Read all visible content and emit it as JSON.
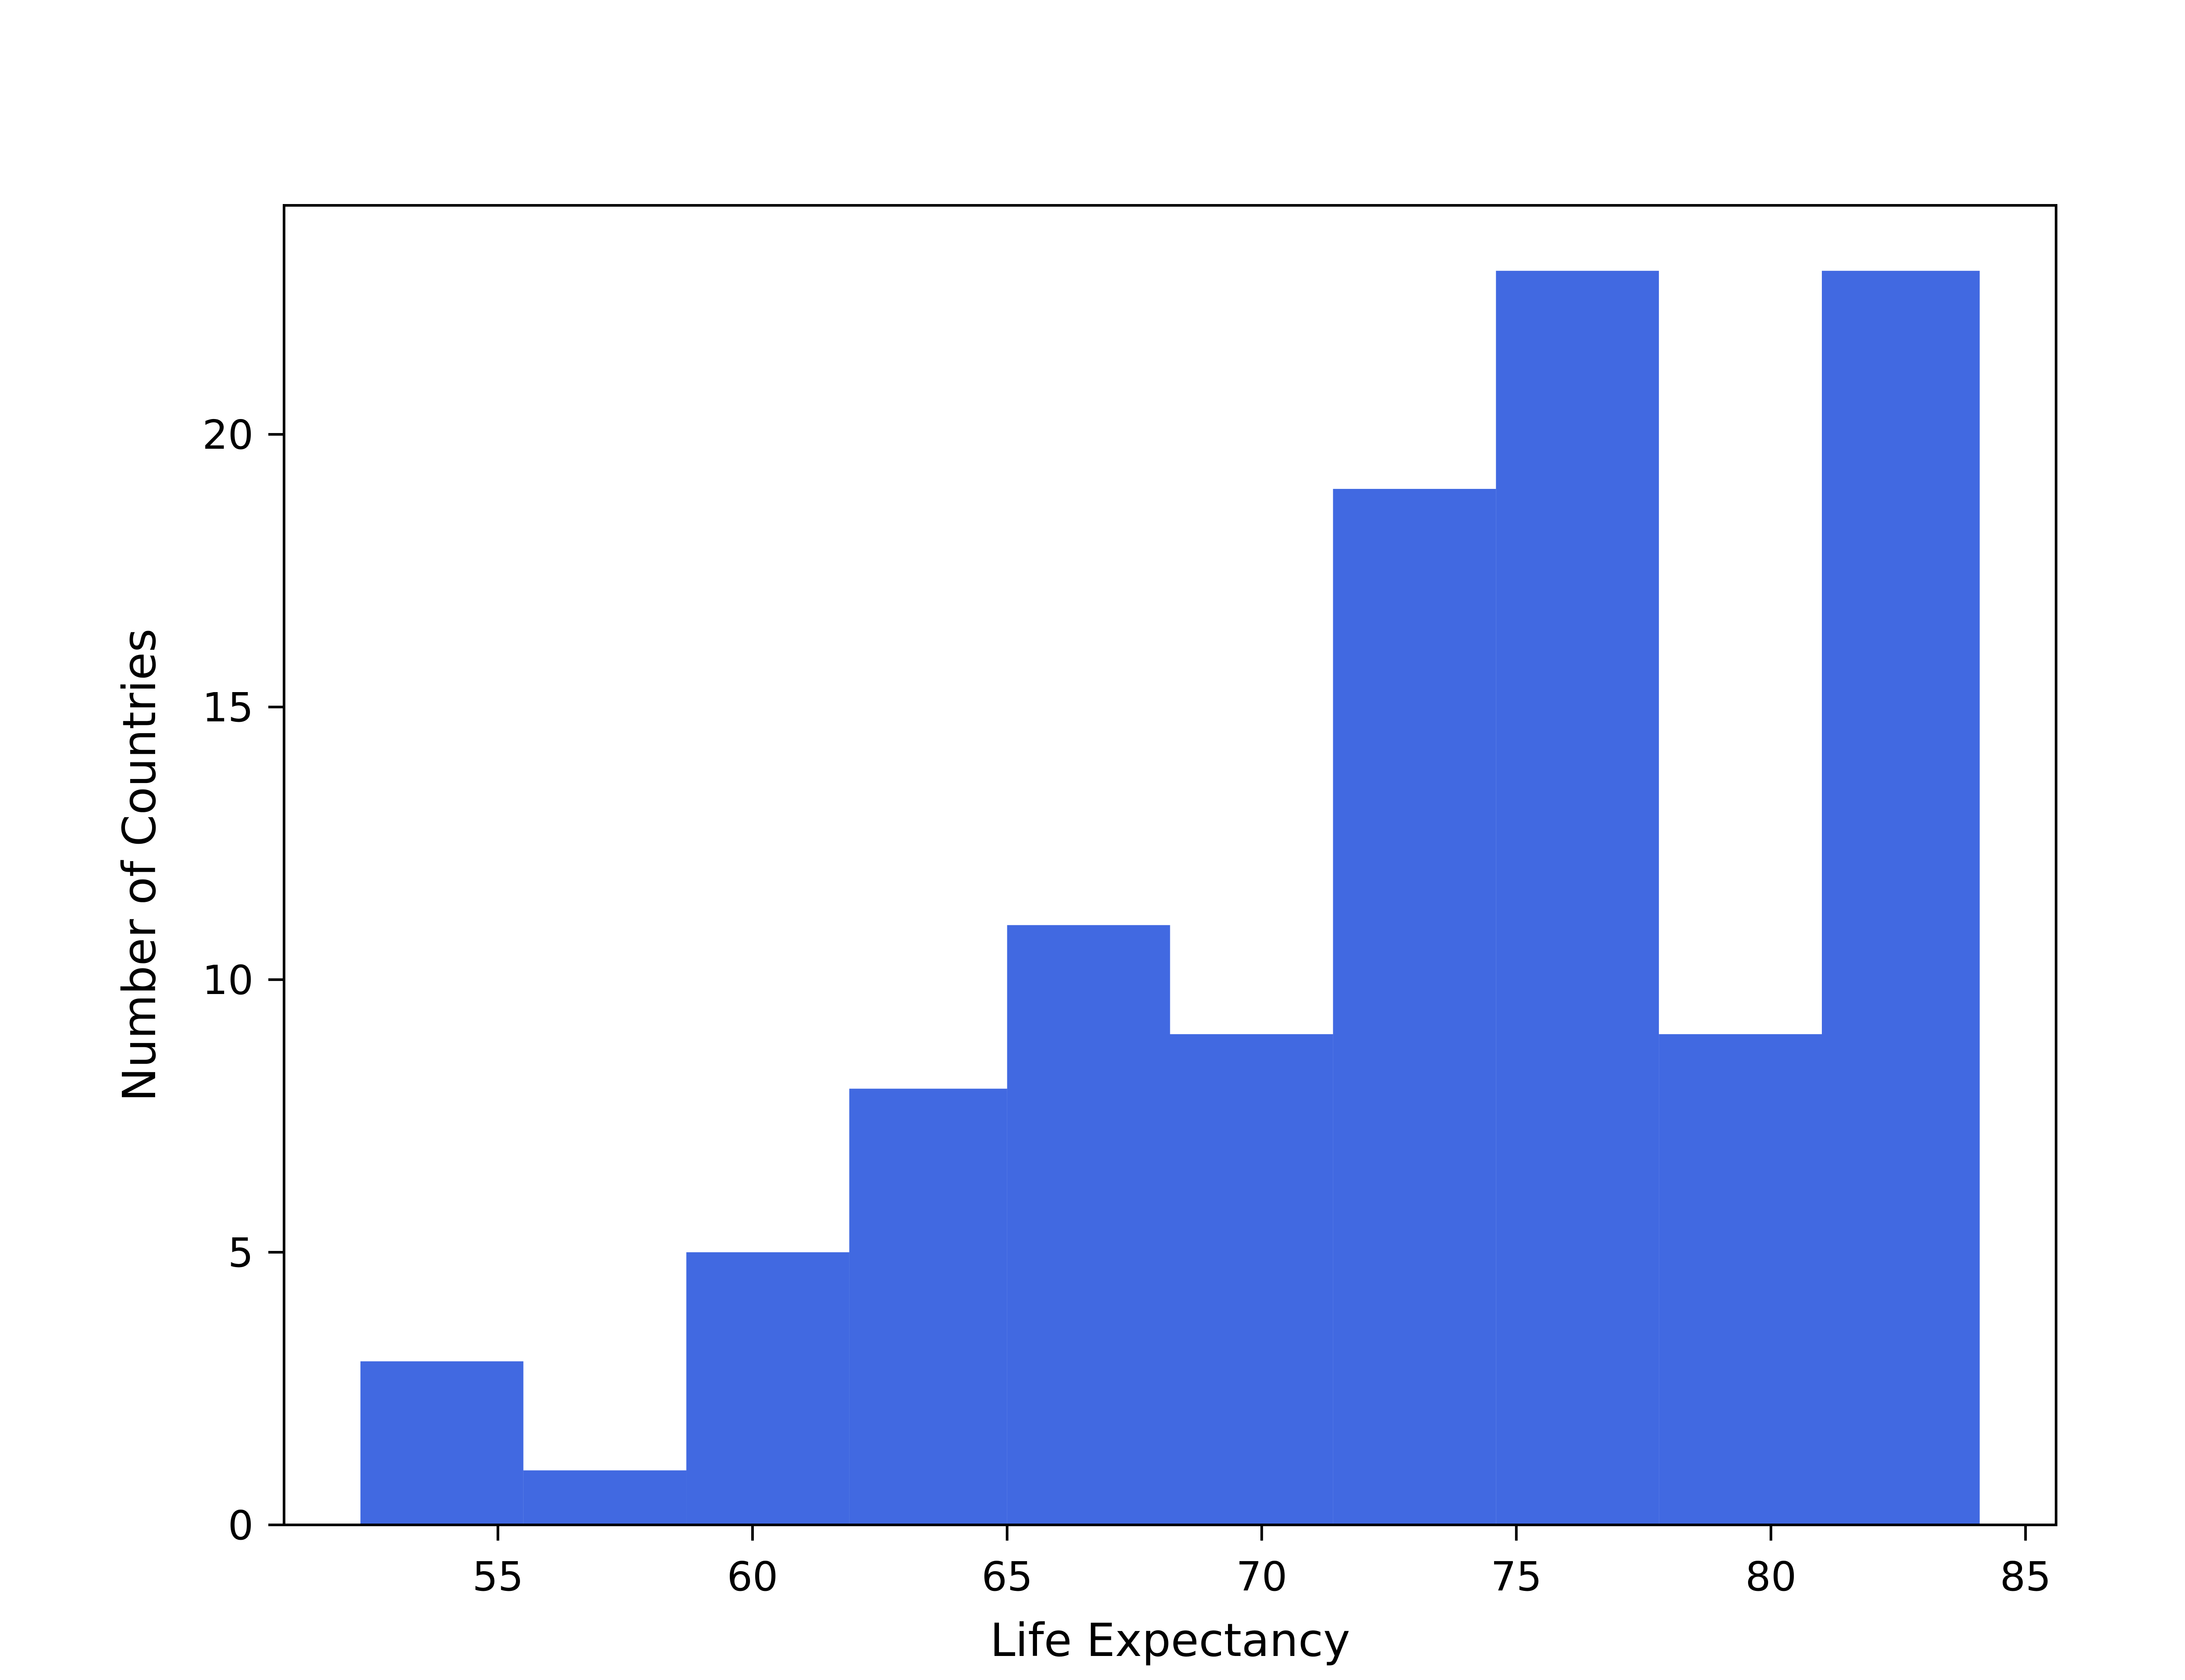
{
  "chart_data": {
    "type": "bar",
    "histogram": true,
    "xlabel": "Life Expectancy",
    "ylabel": "Number of Countries",
    "xlim": [
      50.8,
      85.6
    ],
    "ylim": [
      0,
      24.2
    ],
    "bins": [
      {
        "start": 52.3,
        "end": 55.5,
        "count": 3
      },
      {
        "start": 55.5,
        "end": 58.7,
        "count": 1
      },
      {
        "start": 58.7,
        "end": 61.9,
        "count": 5
      },
      {
        "start": 61.9,
        "end": 65.0,
        "count": 8
      },
      {
        "start": 65.0,
        "end": 68.2,
        "count": 11
      },
      {
        "start": 68.2,
        "end": 71.4,
        "count": 9
      },
      {
        "start": 71.4,
        "end": 74.6,
        "count": 19
      },
      {
        "start": 74.6,
        "end": 77.8,
        "count": 23
      },
      {
        "start": 77.8,
        "end": 81.0,
        "count": 9
      },
      {
        "start": 81.0,
        "end": 84.1,
        "count": 23
      }
    ],
    "x_ticks": [
      55,
      60,
      65,
      70,
      75,
      80,
      85
    ],
    "y_ticks": [
      0,
      5,
      10,
      15,
      20
    ],
    "x_tick_labels": [
      "55",
      "60",
      "65",
      "70",
      "75",
      "80",
      "85"
    ],
    "y_tick_labels": [
      "0",
      "5",
      "10",
      "15",
      "20"
    ],
    "bar_color": "#4169E1",
    "grid": false,
    "legend": null
  }
}
